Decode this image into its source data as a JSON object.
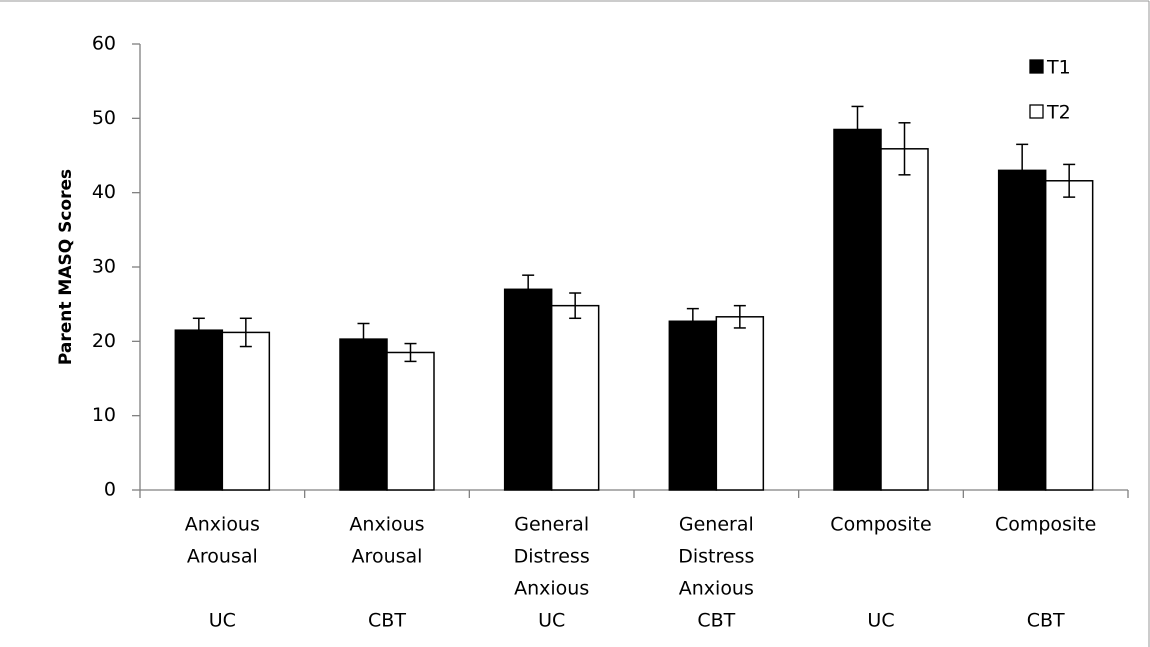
{
  "chart_data": {
    "type": "bar",
    "y_label": "Parent  MASQ Scores",
    "categories": [
      [
        "Anxious",
        "Arousal"
      ],
      [
        "Anxious",
        "Arousal"
      ],
      [
        "General",
        "Distress",
        "Anxious"
      ],
      [
        "General",
        "Distress",
        "Anxious"
      ],
      [
        "Composite"
      ],
      [
        "Composite"
      ]
    ],
    "groups": [
      "UC",
      "CBT",
      "UC",
      "CBT",
      "UC",
      "CBT"
    ],
    "series": [
      {
        "name": "T1",
        "color": "#000000",
        "values": [
          21.5,
          20.3,
          27,
          22.7,
          48.5,
          43
        ],
        "errors": [
          1.6,
          2.1,
          1.9,
          1.7,
          3.1,
          3.5
        ]
      },
      {
        "name": "T2",
        "color": "#ffffff",
        "values": [
          21.2,
          18.5,
          24.8,
          23.3,
          45.9,
          41.6
        ],
        "errors": [
          1.9,
          1.2,
          1.7,
          1.5,
          3.5,
          2.2
        ]
      }
    ],
    "ylim": [
      0,
      60
    ],
    "yticks": [
      0,
      10,
      20,
      30,
      40,
      50,
      60
    ],
    "legend": "top-right"
  }
}
